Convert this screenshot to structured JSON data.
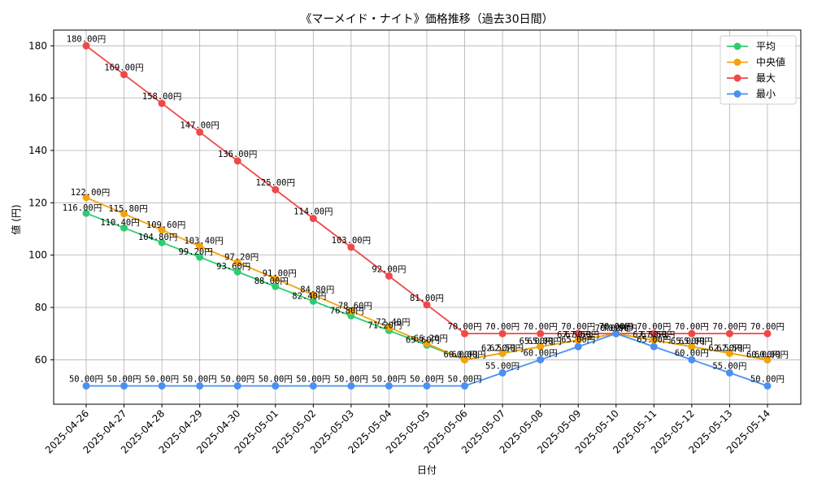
{
  "chart_data": {
    "type": "line",
    "title": "《マーメイド・ナイト》価格推移（過去30日間）",
    "xlabel": "日付",
    "ylabel": "値 (円)",
    "ylim": [
      43,
      186
    ],
    "yticks": [
      60,
      80,
      100,
      120,
      140,
      160,
      180
    ],
    "grid": true,
    "legend_position": "top-right",
    "value_suffix": "円",
    "categories": [
      "2025-04-26",
      "2025-04-27",
      "2025-04-28",
      "2025-04-29",
      "2025-04-30",
      "2025-05-01",
      "2025-05-02",
      "2025-05-03",
      "2025-05-04",
      "2025-05-05",
      "2025-05-06",
      "2025-05-07",
      "2025-05-08",
      "2025-05-09",
      "2025-05-10",
      "2025-05-11",
      "2025-05-12",
      "2025-05-13",
      "2025-05-14"
    ],
    "series": [
      {
        "name": "平均",
        "color": "#2ecc71",
        "label_pos": "left",
        "values": [
          116.0,
          110.4,
          104.8,
          99.2,
          93.6,
          88.0,
          82.4,
          76.8,
          71.2,
          65.6,
          60.0,
          62.5,
          65.0,
          67.5,
          70.0,
          67.5,
          65.0,
          62.5,
          60.0
        ]
      },
      {
        "name": "中央値",
        "color": "#f5a30a",
        "label_pos": "right",
        "values": [
          122.0,
          115.8,
          109.6,
          103.4,
          97.2,
          91.0,
          84.8,
          78.6,
          72.4,
          66.2,
          60.0,
          62.5,
          65.0,
          67.5,
          70.0,
          67.5,
          65.0,
          62.5,
          60.0
        ]
      },
      {
        "name": "最大",
        "color": "#f04848",
        "label_pos": "above",
        "values": [
          180.0,
          169.0,
          158.0,
          147.0,
          136.0,
          125.0,
          114.0,
          103.0,
          92.0,
          81.0,
          70.0,
          70.0,
          70.0,
          70.0,
          70.0,
          70.0,
          70.0,
          70.0,
          70.0
        ]
      },
      {
        "name": "最小",
        "color": "#4a90f0",
        "label_pos": "above",
        "values": [
          50.0,
          50.0,
          50.0,
          50.0,
          50.0,
          50.0,
          50.0,
          50.0,
          50.0,
          50.0,
          50.0,
          55.0,
          60.0,
          65.0,
          70.0,
          65.0,
          60.0,
          55.0,
          50.0
        ]
      }
    ]
  }
}
